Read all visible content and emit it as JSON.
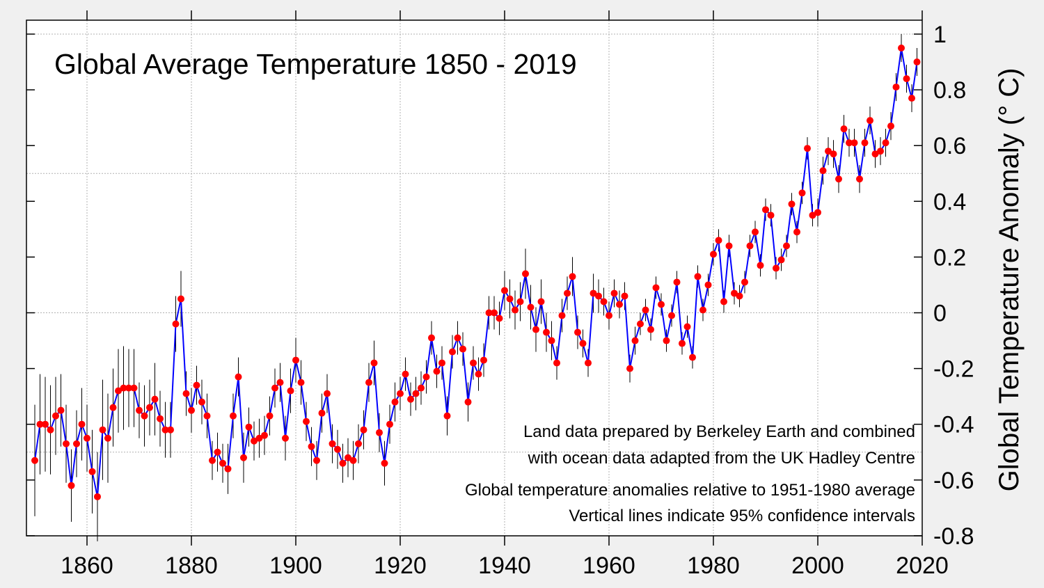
{
  "chart_data": {
    "type": "line",
    "title": "Global Average Temperature 1850 - 2019",
    "xlabel": "",
    "ylabel": "Global Temperature Anomaly (° C)",
    "xlim": [
      1848,
      2020
    ],
    "ylim": [
      -0.8,
      1.05
    ],
    "x_ticks": [
      1860,
      1880,
      1900,
      1920,
      1940,
      1960,
      1980,
      2000,
      2020
    ],
    "y_ticks": [
      1,
      0.8,
      0.6,
      0.4,
      0.2,
      0,
      -0.2,
      -0.4,
      -0.6,
      -0.8
    ],
    "y_tick_labels": [
      "1",
      "0.8",
      "0.6",
      "0.4",
      "0.2",
      "0",
      "-0.2",
      "-0.4",
      "-0.6",
      "-0.8"
    ],
    "x_tick_labels": [
      "1860",
      "1880",
      "1900",
      "1920",
      "1940",
      "1960",
      "1980",
      "2000",
      "2020"
    ],
    "grid": true,
    "y_axis_side": "right",
    "line_color": "#0000ff",
    "marker_color": "#ff0000",
    "errorbar_color": "#000000",
    "x_start": 1850,
    "values": [
      -0.53,
      -0.4,
      -0.4,
      -0.42,
      -0.37,
      -0.35,
      -0.47,
      -0.62,
      -0.47,
      -0.4,
      -0.45,
      -0.57,
      -0.66,
      -0.42,
      -0.45,
      -0.34,
      -0.28,
      -0.27,
      -0.27,
      -0.27,
      -0.35,
      -0.37,
      -0.34,
      -0.31,
      -0.38,
      -0.42,
      -0.42,
      -0.04,
      0.05,
      -0.29,
      -0.35,
      -0.26,
      -0.32,
      -0.37,
      -0.53,
      -0.5,
      -0.54,
      -0.56,
      -0.37,
      -0.23,
      -0.52,
      -0.41,
      -0.46,
      -0.45,
      -0.44,
      -0.37,
      -0.27,
      -0.25,
      -0.45,
      -0.28,
      -0.17,
      -0.25,
      -0.39,
      -0.48,
      -0.53,
      -0.36,
      -0.29,
      -0.47,
      -0.49,
      -0.54,
      -0.52,
      -0.53,
      -0.47,
      -0.42,
      -0.25,
      -0.18,
      -0.43,
      -0.54,
      -0.4,
      -0.32,
      -0.29,
      -0.22,
      -0.31,
      -0.29,
      -0.27,
      -0.23,
      -0.09,
      -0.21,
      -0.18,
      -0.37,
      -0.14,
      -0.09,
      -0.13,
      -0.32,
      -0.18,
      -0.22,
      -0.17,
      0.0,
      0.0,
      -0.02,
      0.08,
      0.05,
      0.01,
      0.04,
      0.14,
      0.02,
      -0.06,
      0.04,
      -0.07,
      -0.1,
      -0.18,
      -0.01,
      0.07,
      0.13,
      -0.07,
      -0.11,
      -0.18,
      0.07,
      0.06,
      0.04,
      -0.01,
      0.07,
      0.03,
      0.06,
      -0.2,
      -0.1,
      -0.04,
      0.01,
      -0.06,
      0.09,
      0.03,
      -0.1,
      -0.01,
      0.11,
      -0.11,
      -0.05,
      -0.16,
      0.13,
      0.01,
      0.1,
      0.21,
      0.26,
      0.04,
      0.24,
      0.07,
      0.06,
      0.11,
      0.24,
      0.29,
      0.17,
      0.37,
      0.35,
      0.16,
      0.19,
      0.24,
      0.39,
      0.29,
      0.43,
      0.59,
      0.35,
      0.36,
      0.51,
      0.58,
      0.57,
      0.48,
      0.66,
      0.61,
      0.61,
      0.48,
      0.61,
      0.69,
      0.57,
      0.58,
      0.61,
      0.67,
      0.81,
      0.95,
      0.84,
      0.77,
      0.9
    ],
    "ci95": [
      0.2,
      0.18,
      0.17,
      0.16,
      0.14,
      0.13,
      0.14,
      0.13,
      0.12,
      0.13,
      0.12,
      0.15,
      0.16,
      0.18,
      0.16,
      0.14,
      0.15,
      0.15,
      0.14,
      0.14,
      0.1,
      0.11,
      0.1,
      0.13,
      0.1,
      0.1,
      0.1,
      0.1,
      0.1,
      0.08,
      0.08,
      0.07,
      0.08,
      0.08,
      0.07,
      0.07,
      0.07,
      0.09,
      0.08,
      0.07,
      0.09,
      0.07,
      0.07,
      0.07,
      0.07,
      0.07,
      0.07,
      0.07,
      0.08,
      0.08,
      0.08,
      0.08,
      0.07,
      0.07,
      0.07,
      0.07,
      0.07,
      0.07,
      0.07,
      0.07,
      0.07,
      0.07,
      0.07,
      0.07,
      0.07,
      0.08,
      0.07,
      0.08,
      0.07,
      0.07,
      0.06,
      0.06,
      0.06,
      0.06,
      0.06,
      0.06,
      0.06,
      0.06,
      0.06,
      0.07,
      0.06,
      0.06,
      0.06,
      0.07,
      0.06,
      0.06,
      0.06,
      0.06,
      0.06,
      0.06,
      0.07,
      0.07,
      0.07,
      0.07,
      0.09,
      0.08,
      0.08,
      0.08,
      0.07,
      0.07,
      0.06,
      0.06,
      0.06,
      0.07,
      0.06,
      0.05,
      0.05,
      0.07,
      0.06,
      0.05,
      0.05,
      0.05,
      0.05,
      0.05,
      0.05,
      0.05,
      0.04,
      0.04,
      0.04,
      0.04,
      0.04,
      0.04,
      0.04,
      0.04,
      0.04,
      0.04,
      0.04,
      0.04,
      0.04,
      0.04,
      0.04,
      0.04,
      0.04,
      0.04,
      0.04,
      0.04,
      0.04,
      0.04,
      0.04,
      0.04,
      0.04,
      0.04,
      0.04,
      0.04,
      0.04,
      0.04,
      0.04,
      0.04,
      0.04,
      0.04,
      0.05,
      0.05,
      0.05,
      0.05,
      0.05,
      0.05,
      0.05,
      0.05,
      0.05,
      0.05,
      0.05,
      0.05,
      0.05,
      0.05,
      0.05,
      0.05,
      0.05,
      0.05,
      0.05,
      0.05
    ],
    "annotations": [
      "Land data prepared by Berkeley Earth and combined",
      "with ocean data adapted from the UK Hadley Centre",
      "Global temperature anomalies relative to 1951-1980 average",
      "Vertical lines indicate 95% confidence intervals"
    ]
  }
}
